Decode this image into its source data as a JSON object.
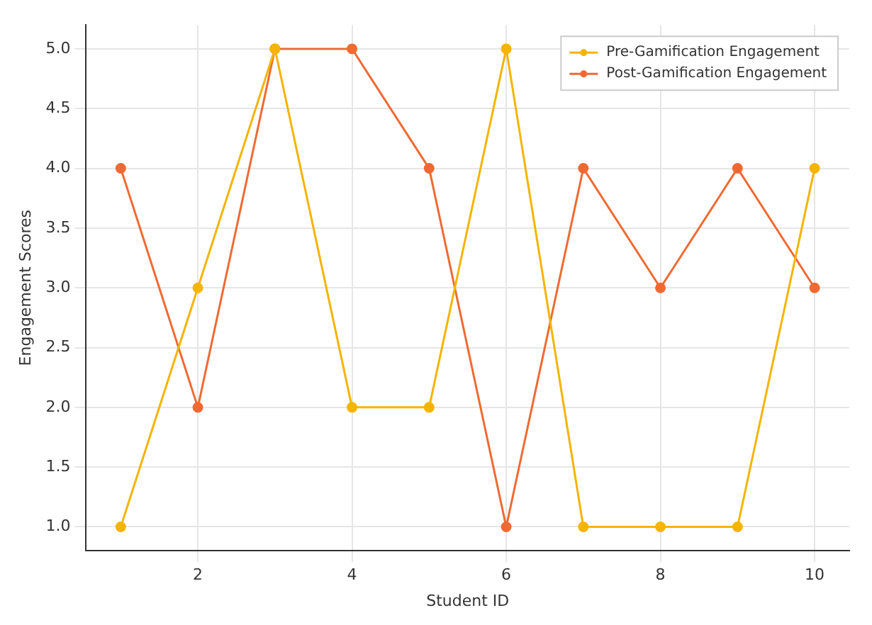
{
  "chart_data": {
    "type": "line",
    "xlabel": "Student ID",
    "ylabel": "Engagement Scores",
    "x": [
      1,
      2,
      3,
      4,
      5,
      6,
      7,
      8,
      9,
      10
    ],
    "series": [
      {
        "name": "Pre-Gamification Engagement",
        "color": "#f5b400",
        "values": [
          1,
          3,
          5,
          2,
          2,
          5,
          1,
          1,
          1,
          4
        ]
      },
      {
        "name": "Post-Gamification Engagement",
        "color": "#ef6a32",
        "values": [
          4,
          2,
          5,
          5,
          4,
          1,
          4,
          3,
          4,
          3
        ]
      }
    ],
    "xlim": [
      0.55,
      10.45
    ],
    "xticks": [
      2,
      4,
      6,
      8,
      10
    ],
    "ylim": [
      0.8,
      5.2
    ],
    "yticks": [
      {
        "value": 1,
        "label": "1.0"
      },
      {
        "value": 1.5,
        "label": "1.5"
      },
      {
        "value": 2,
        "label": "2.0"
      },
      {
        "value": 2.5,
        "label": "2.5"
      },
      {
        "value": 3,
        "label": "3.0"
      },
      {
        "value": 3.5,
        "label": "3.5"
      },
      {
        "value": 4,
        "label": "4.0"
      },
      {
        "value": 4.5,
        "label": "4.5"
      },
      {
        "value": 5,
        "label": "5.0"
      }
    ],
    "grid": true,
    "legend": "top right",
    "marker": "circle",
    "line_style": "solid"
  }
}
